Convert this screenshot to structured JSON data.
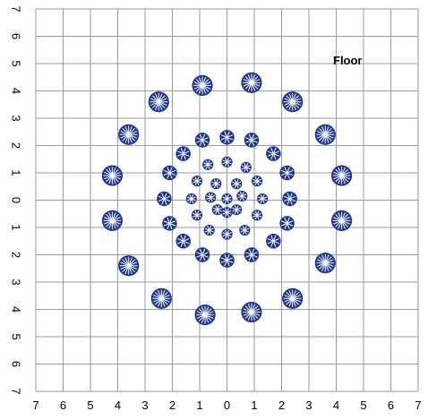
{
  "floor_label": "Floor",
  "x_ticks": [
    "7",
    "6",
    "5",
    "4",
    "3",
    "2",
    "1",
    "0",
    "1",
    "2",
    "3",
    "4",
    "5",
    "6",
    "7"
  ],
  "y_ticks": [
    "7",
    "6",
    "5",
    "4",
    "3",
    "2",
    "1",
    "0",
    "1",
    "2",
    "3",
    "4",
    "5",
    "6",
    "7"
  ],
  "colors": {
    "grid": "#9a9a9a",
    "marker": "#1c3591",
    "marker_line": "#ffffff",
    "text": "#000000"
  },
  "markers": [
    {
      "x": -0.9,
      "y": 4.2,
      "r": 0.38
    },
    {
      "x": 0.9,
      "y": 4.3,
      "r": 0.38
    },
    {
      "x": -2.5,
      "y": 3.6,
      "r": 0.38
    },
    {
      "x": 2.4,
      "y": 3.6,
      "r": 0.38
    },
    {
      "x": -3.6,
      "y": 2.4,
      "r": 0.38
    },
    {
      "x": 3.6,
      "y": 2.4,
      "r": 0.38
    },
    {
      "x": -4.2,
      "y": 0.9,
      "r": 0.38
    },
    {
      "x": 4.2,
      "y": 0.9,
      "r": 0.38
    },
    {
      "x": -4.2,
      "y": -0.75,
      "r": 0.38
    },
    {
      "x": 4.2,
      "y": -0.75,
      "r": 0.38
    },
    {
      "x": -3.6,
      "y": -2.4,
      "r": 0.38
    },
    {
      "x": 3.6,
      "y": -2.3,
      "r": 0.38
    },
    {
      "x": -2.4,
      "y": -3.6,
      "r": 0.38
    },
    {
      "x": 2.4,
      "y": -3.6,
      "r": 0.38
    },
    {
      "x": -0.8,
      "y": -4.2,
      "r": 0.38
    },
    {
      "x": 0.9,
      "y": -4.1,
      "r": 0.38
    },
    {
      "x": -0.9,
      "y": 2.2,
      "r": 0.27
    },
    {
      "x": 0.0,
      "y": 2.3,
      "r": 0.27
    },
    {
      "x": 0.9,
      "y": 2.2,
      "r": 0.27
    },
    {
      "x": -1.6,
      "y": 1.7,
      "r": 0.27
    },
    {
      "x": 1.7,
      "y": 1.7,
      "r": 0.27
    },
    {
      "x": -2.1,
      "y": 1.0,
      "r": 0.27
    },
    {
      "x": 2.2,
      "y": 1.0,
      "r": 0.27
    },
    {
      "x": -2.3,
      "y": 0.05,
      "r": 0.27
    },
    {
      "x": 2.3,
      "y": 0.05,
      "r": 0.27
    },
    {
      "x": -2.1,
      "y": -0.85,
      "r": 0.27
    },
    {
      "x": 2.2,
      "y": -0.85,
      "r": 0.27
    },
    {
      "x": -1.6,
      "y": -1.5,
      "r": 0.27
    },
    {
      "x": 1.7,
      "y": -1.5,
      "r": 0.27
    },
    {
      "x": -0.9,
      "y": -2.0,
      "r": 0.27
    },
    {
      "x": 0.0,
      "y": -2.2,
      "r": 0.27
    },
    {
      "x": 0.9,
      "y": -2.0,
      "r": 0.27
    },
    {
      "x": -0.7,
      "y": 1.3,
      "r": 0.2
    },
    {
      "x": 0.0,
      "y": 1.4,
      "r": 0.2
    },
    {
      "x": 0.7,
      "y": 1.2,
      "r": 0.2
    },
    {
      "x": -1.1,
      "y": 0.7,
      "r": 0.2
    },
    {
      "x": 1.1,
      "y": 0.7,
      "r": 0.2
    },
    {
      "x": -1.3,
      "y": 0.05,
      "r": 0.2
    },
    {
      "x": 1.3,
      "y": 0.05,
      "r": 0.2
    },
    {
      "x": -1.1,
      "y": -0.55,
      "r": 0.2
    },
    {
      "x": 1.1,
      "y": -0.55,
      "r": 0.2
    },
    {
      "x": -0.65,
      "y": -1.1,
      "r": 0.2
    },
    {
      "x": 0.0,
      "y": -1.25,
      "r": 0.2
    },
    {
      "x": 0.65,
      "y": -1.1,
      "r": 0.2
    },
    {
      "x": -0.4,
      "y": 0.6,
      "r": 0.2
    },
    {
      "x": 0.35,
      "y": 0.6,
      "r": 0.2
    },
    {
      "x": -0.6,
      "y": 0.1,
      "r": 0.2
    },
    {
      "x": 0.55,
      "y": 0.15,
      "r": 0.2
    },
    {
      "x": -0.35,
      "y": -0.35,
      "r": 0.2
    },
    {
      "x": 0.35,
      "y": -0.35,
      "r": 0.2
    },
    {
      "x": 0.0,
      "y": 0.05,
      "r": 0.2
    },
    {
      "x": 0.0,
      "y": -0.45,
      "r": 0.2
    }
  ]
}
